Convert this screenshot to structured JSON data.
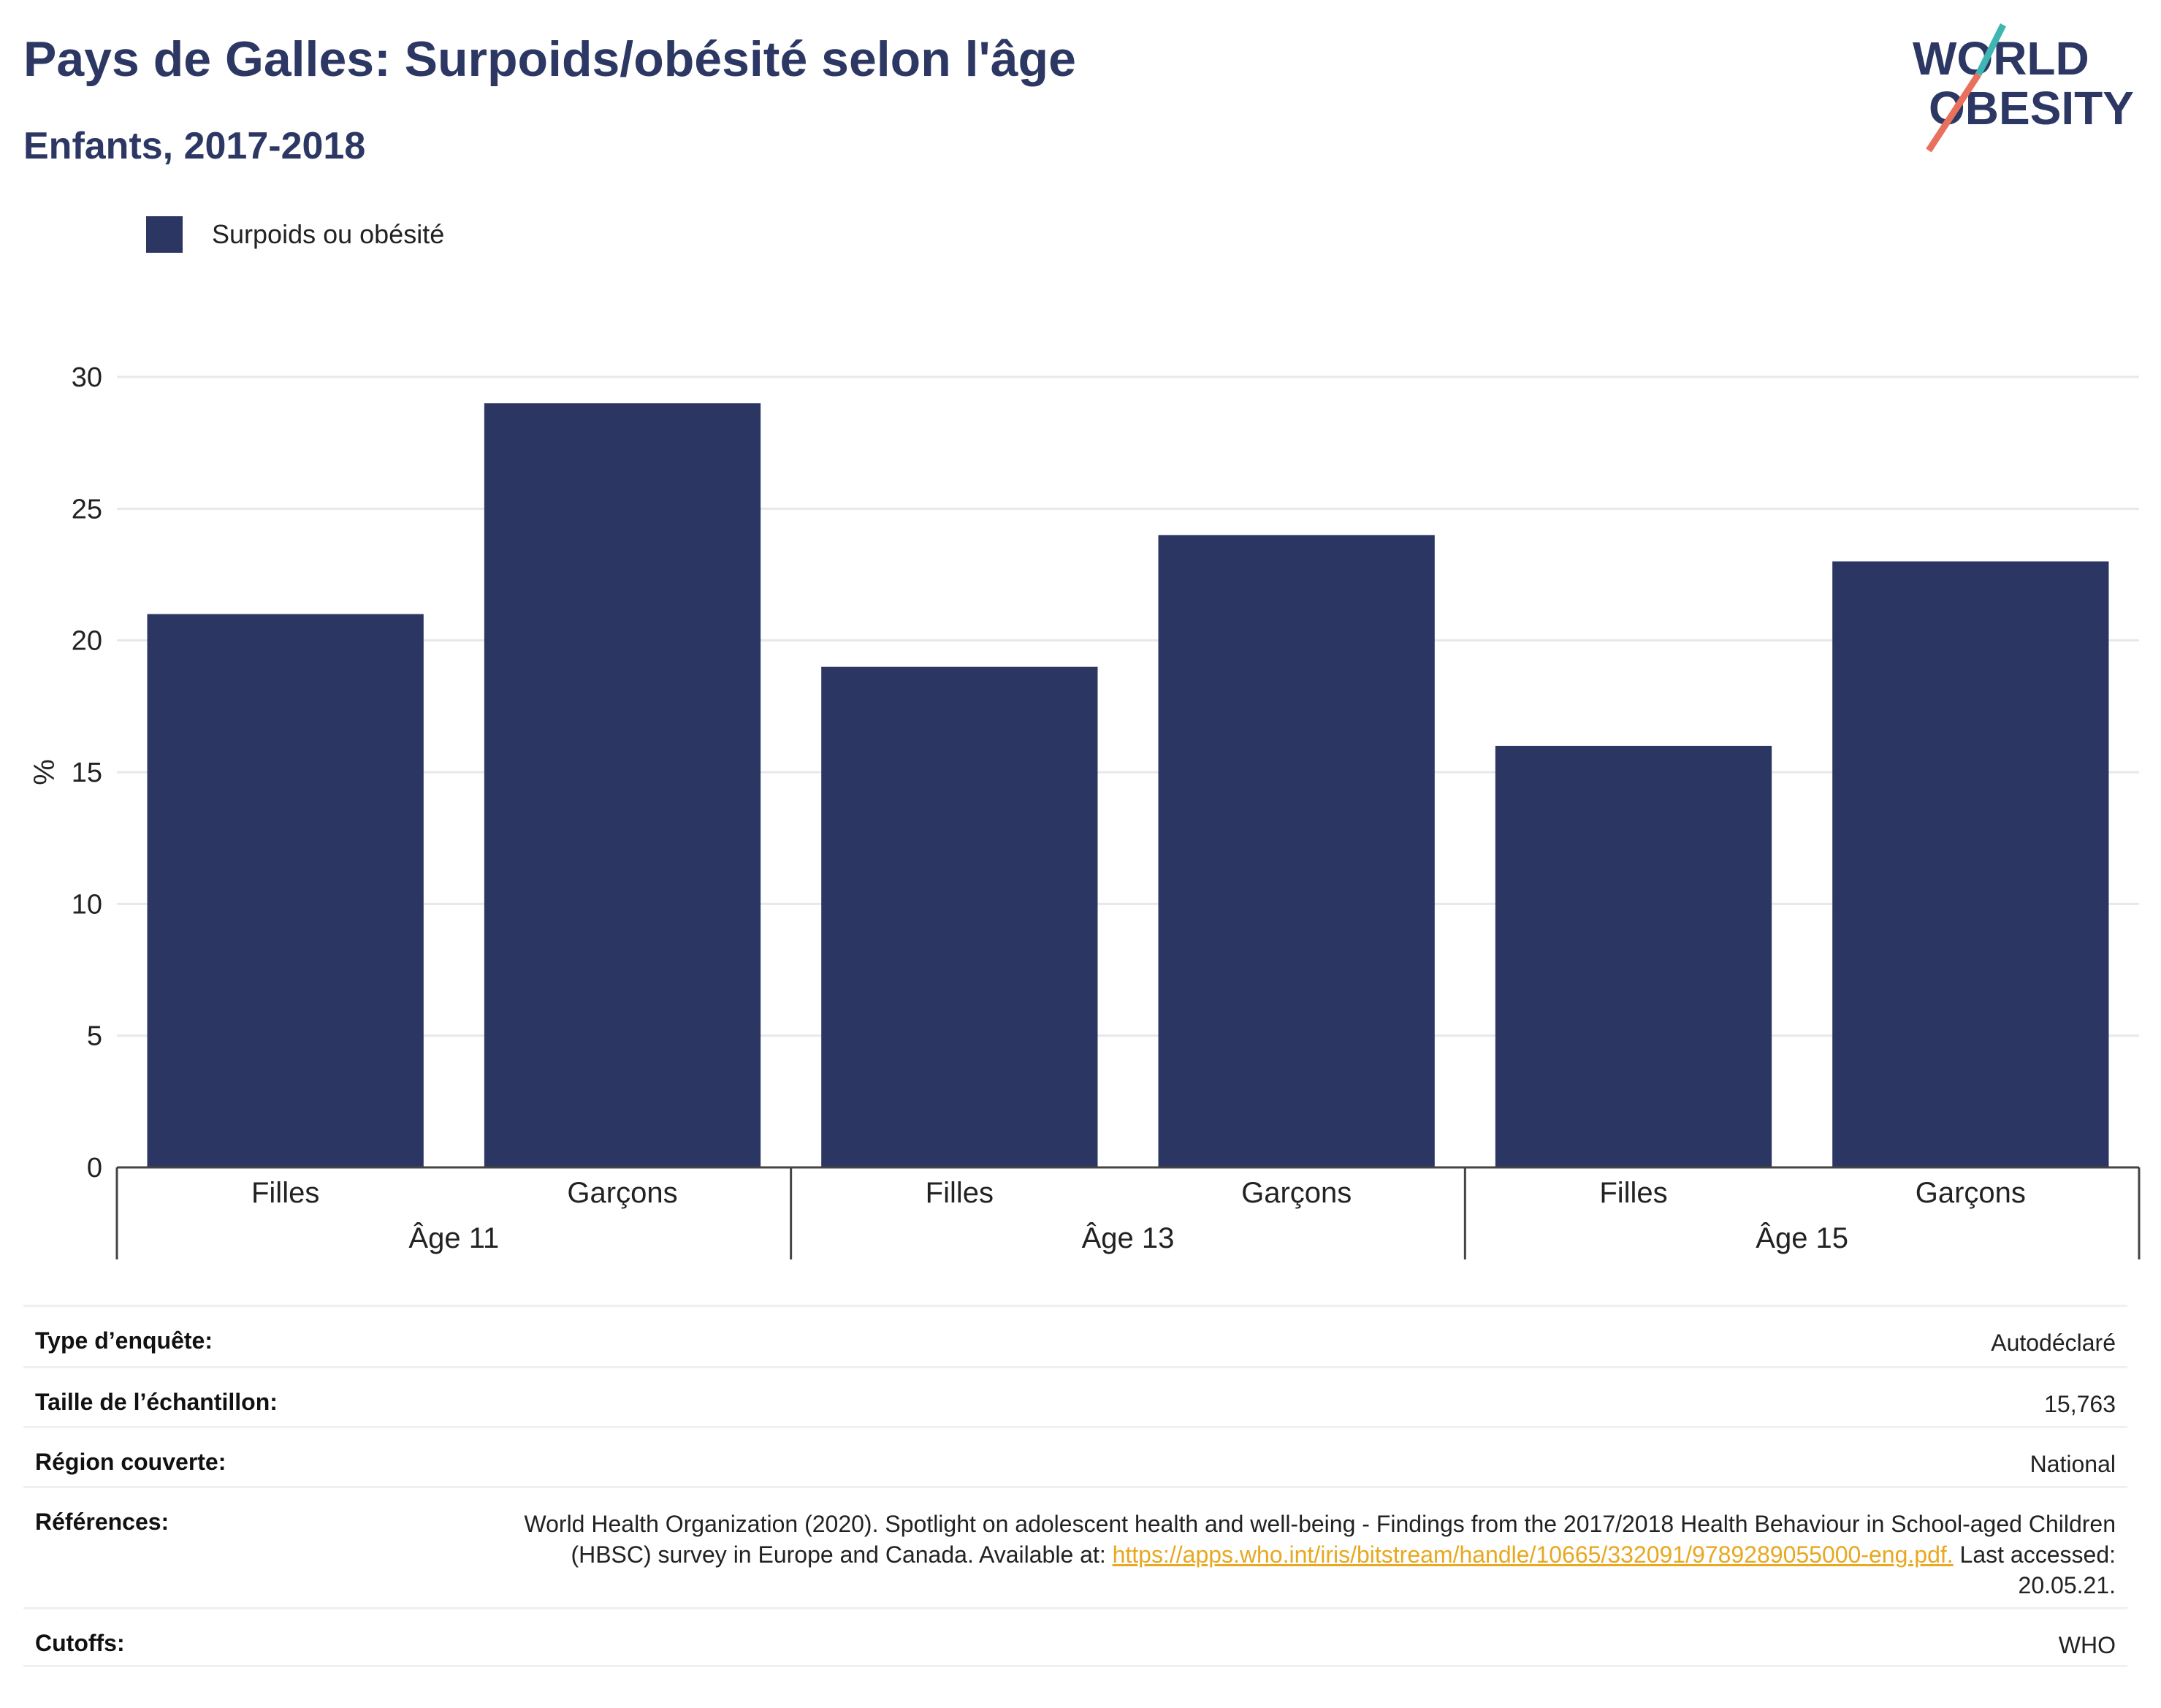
{
  "header": {
    "title": "Pays de Galles: Surpoids/obésité selon l'âge",
    "subtitle": "Enfants, 2017-2018"
  },
  "logo": {
    "line1": "WORLD",
    "line2": "OBESITY",
    "colors": {
      "text": "#2c3863",
      "slash_teal": "#3fb6b2",
      "slash_coral": "#e8705d"
    }
  },
  "colors": {
    "bar": "#2b3663",
    "axis": "#444444",
    "grid": "#e6e8ec"
  },
  "chart_data": {
    "type": "bar",
    "ylabel": "%",
    "ylim": [
      0,
      30
    ],
    "yticks": [
      0,
      5,
      10,
      15,
      20,
      25,
      30
    ],
    "grid": true,
    "legend": {
      "placement": "top-left",
      "entries": [
        "Surpoids ou obésité"
      ]
    },
    "groups": [
      {
        "label": "Âge 11",
        "categories": [
          "Filles",
          "Garçons"
        ]
      },
      {
        "label": "Âge 13",
        "categories": [
          "Filles",
          "Garçons"
        ]
      },
      {
        "label": "Âge 15",
        "categories": [
          "Filles",
          "Garçons"
        ]
      }
    ],
    "series": [
      {
        "name": "Surpoids ou obésité",
        "values": [
          21,
          29,
          19,
          24,
          16,
          23
        ]
      }
    ]
  },
  "info": {
    "survey_type": {
      "label": "Type d’enquête:",
      "value": "Autodéclaré"
    },
    "sample_size": {
      "label": "Taille de l’échantillon:",
      "value": "15,763"
    },
    "region": {
      "label": "Région couverte:",
      "value": "National"
    },
    "references": {
      "label": "Références:",
      "text": "World Health Organization (2020). Spotlight on adolescent health and well-being - Findings from the 2017/2018 Health Behaviour in School-aged Children (HBSC) survey in Europe and Canada. Available at:",
      "link": "https://apps.who.int/iris/bitstream/handle/10665/332091/9789289055000-eng.pdf.",
      "suffix": " Last accessed: 20.05.21."
    },
    "cutoffs": {
      "label": "Cutoffs:",
      "value": "WHO"
    }
  }
}
